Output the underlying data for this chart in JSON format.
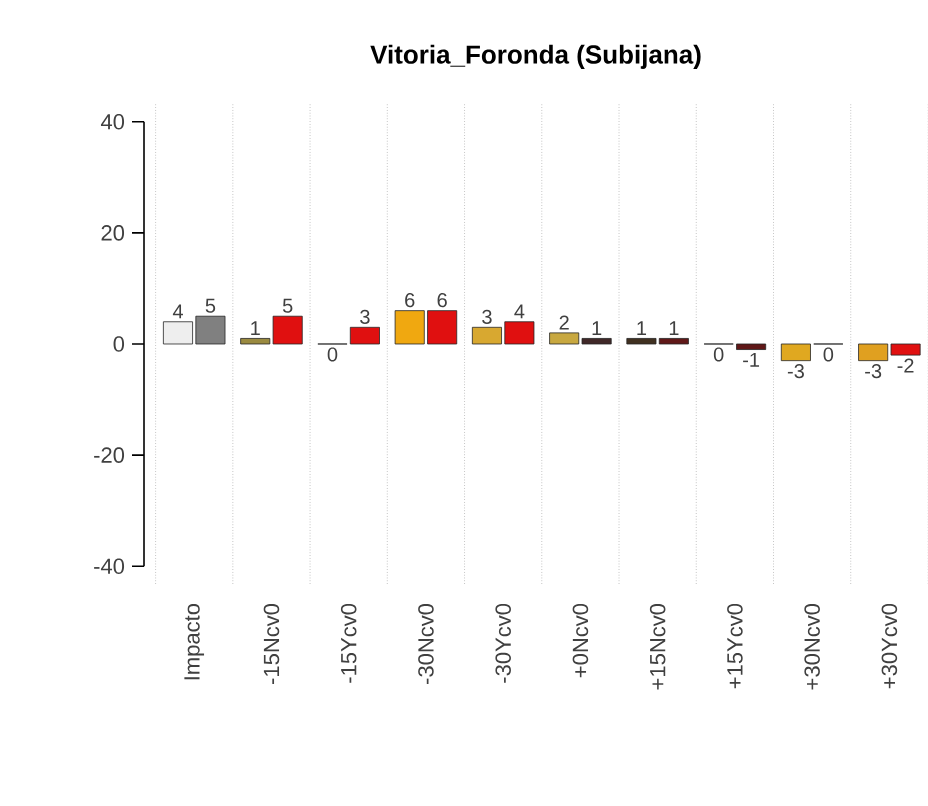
{
  "chart_data": {
    "type": "bar",
    "title": "Vitoria_Foronda (Subijana)",
    "categories": [
      "Impacto",
      "-15Ncv0",
      "-15Ycv0",
      "-30Ncv0",
      "-30Ycv0",
      "+0Ncv0",
      "+15Ncv0",
      "+15Ycv0",
      "+30Ncv0",
      "+30Ycv0"
    ],
    "series": [
      {
        "values": [
          4,
          1,
          0,
          6,
          3,
          2,
          1,
          0,
          -3,
          -3
        ],
        "colors": [
          "#eeeeee",
          "#9a8a40",
          "#8a8a8a",
          "#f0a810",
          "#d8a830",
          "#c8a840",
          "#403020",
          "#404040",
          "#e0a820",
          "#e0a020"
        ]
      },
      {
        "values": [
          5,
          5,
          3,
          6,
          4,
          1,
          1,
          -1,
          0,
          -2
        ],
        "colors": [
          "#808080",
          "#e01010",
          "#e01010",
          "#e01010",
          "#e01010",
          "#402828",
          "#601818",
          "#601818",
          "#404040",
          "#e01010"
        ]
      }
    ],
    "ylim": [
      -43.2,
      43.2
    ],
    "yticks": [
      -40,
      -20,
      0,
      20,
      40
    ],
    "data_labels": true,
    "grid": "x"
  }
}
